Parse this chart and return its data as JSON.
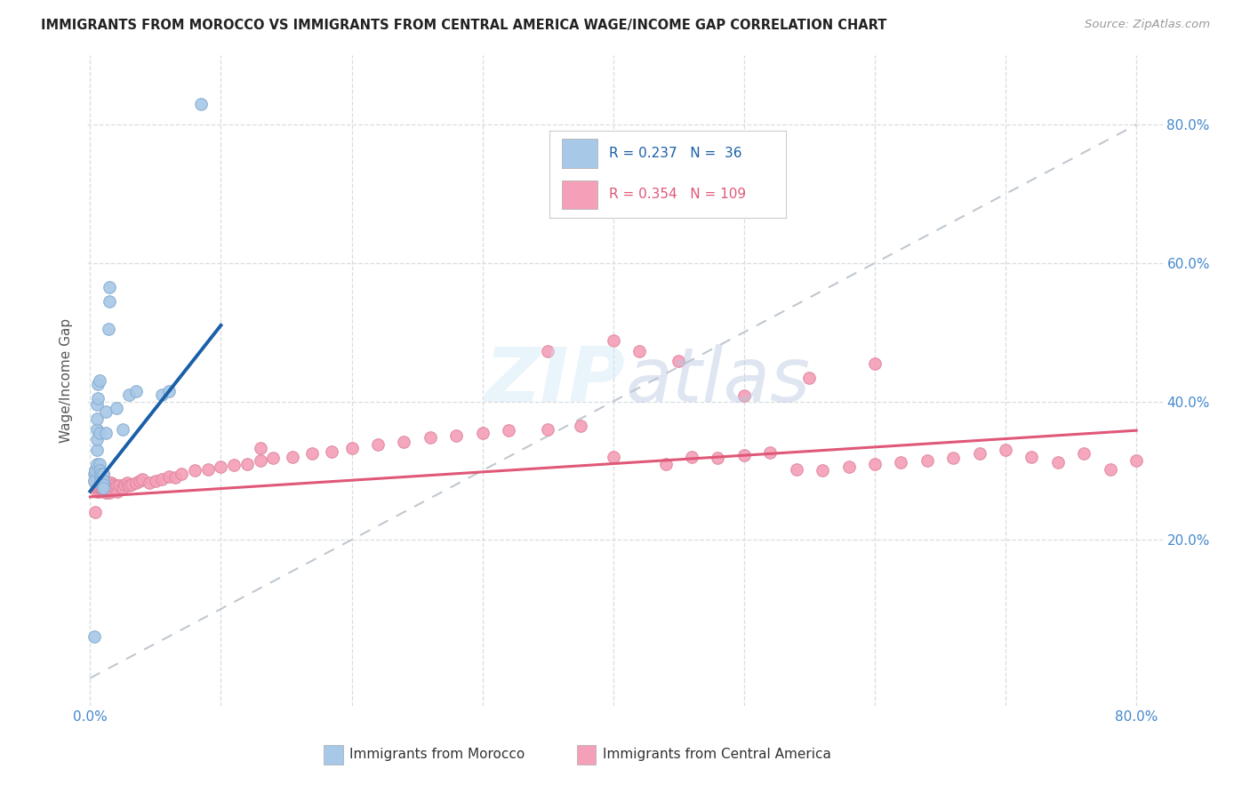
{
  "title": "IMMIGRANTS FROM MOROCCO VS IMMIGRANTS FROM CENTRAL AMERICA WAGE/INCOME GAP CORRELATION CHART",
  "source": "Source: ZipAtlas.com",
  "ylabel": "Wage/Income Gap",
  "ytick_labels": [
    "20.0%",
    "40.0%",
    "60.0%",
    "80.0%"
  ],
  "ytick_vals": [
    0.2,
    0.4,
    0.6,
    0.8
  ],
  "xlim": [
    -0.002,
    0.82
  ],
  "ylim": [
    -0.04,
    0.9
  ],
  "morocco_color": "#a8c8e8",
  "morocco_edge": "#88aed0",
  "central_america_color": "#f4a0b8",
  "central_america_edge": "#e088a0",
  "morocco_line_color": "#1a5fa8",
  "central_america_line_color": "#e05878",
  "diagonal_color": "#c0c8d0",
  "background_color": "#ffffff",
  "grid_color": "#d8dde2",
  "legend_r1": "0.237",
  "legend_n1": "36",
  "legend_r2": "0.354",
  "legend_n2": "109",
  "morocco_x": [
    0.003,
    0.003,
    0.004,
    0.005,
    0.005,
    0.005,
    0.005,
    0.005,
    0.005,
    0.006,
    0.006,
    0.007,
    0.007,
    0.007,
    0.007,
    0.008,
    0.008,
    0.008,
    0.009,
    0.01,
    0.01,
    0.01,
    0.01,
    0.012,
    0.012,
    0.014,
    0.015,
    0.015,
    0.02,
    0.025,
    0.03,
    0.035,
    0.055,
    0.06,
    0.085,
    0.003
  ],
  "morocco_y": [
    0.295,
    0.285,
    0.3,
    0.31,
    0.33,
    0.345,
    0.36,
    0.375,
    0.395,
    0.405,
    0.425,
    0.43,
    0.355,
    0.31,
    0.3,
    0.295,
    0.29,
    0.285,
    0.285,
    0.295,
    0.285,
    0.28,
    0.275,
    0.355,
    0.385,
    0.505,
    0.545,
    0.565,
    0.39,
    0.36,
    0.41,
    0.415,
    0.41,
    0.415,
    0.83,
    0.06
  ],
  "central_america_x": [
    0.003,
    0.004,
    0.004,
    0.004,
    0.005,
    0.005,
    0.005,
    0.005,
    0.005,
    0.006,
    0.006,
    0.006,
    0.006,
    0.006,
    0.007,
    0.007,
    0.007,
    0.007,
    0.008,
    0.008,
    0.008,
    0.008,
    0.009,
    0.009,
    0.009,
    0.01,
    0.01,
    0.01,
    0.01,
    0.011,
    0.011,
    0.012,
    0.012,
    0.012,
    0.013,
    0.013,
    0.014,
    0.014,
    0.015,
    0.015,
    0.016,
    0.016,
    0.017,
    0.018,
    0.019,
    0.02,
    0.021,
    0.022,
    0.025,
    0.026,
    0.028,
    0.03,
    0.032,
    0.035,
    0.038,
    0.04,
    0.045,
    0.05,
    0.055,
    0.06,
    0.065,
    0.07,
    0.08,
    0.09,
    0.1,
    0.11,
    0.12,
    0.13,
    0.14,
    0.155,
    0.17,
    0.185,
    0.2,
    0.22,
    0.24,
    0.26,
    0.28,
    0.3,
    0.32,
    0.35,
    0.375,
    0.4,
    0.42,
    0.44,
    0.46,
    0.48,
    0.5,
    0.52,
    0.54,
    0.56,
    0.58,
    0.6,
    0.62,
    0.64,
    0.66,
    0.68,
    0.7,
    0.72,
    0.74,
    0.76,
    0.78,
    0.8,
    0.35,
    0.4,
    0.45,
    0.5,
    0.55,
    0.6,
    0.13
  ],
  "central_america_y": [
    0.285,
    0.295,
    0.3,
    0.24,
    0.27,
    0.28,
    0.285,
    0.29,
    0.3,
    0.275,
    0.28,
    0.285,
    0.29,
    0.295,
    0.27,
    0.275,
    0.28,
    0.29,
    0.275,
    0.28,
    0.288,
    0.295,
    0.272,
    0.278,
    0.285,
    0.272,
    0.278,
    0.284,
    0.295,
    0.272,
    0.28,
    0.268,
    0.275,
    0.285,
    0.268,
    0.278,
    0.27,
    0.282,
    0.268,
    0.28,
    0.27,
    0.282,
    0.272,
    0.28,
    0.275,
    0.278,
    0.27,
    0.278,
    0.275,
    0.28,
    0.282,
    0.278,
    0.28,
    0.282,
    0.285,
    0.288,
    0.282,
    0.285,
    0.288,
    0.292,
    0.29,
    0.295,
    0.3,
    0.302,
    0.305,
    0.308,
    0.31,
    0.314,
    0.318,
    0.32,
    0.325,
    0.328,
    0.332,
    0.338,
    0.342,
    0.348,
    0.35,
    0.354,
    0.358,
    0.36,
    0.365,
    0.32,
    0.472,
    0.31,
    0.32,
    0.318,
    0.322,
    0.326,
    0.302,
    0.3,
    0.305,
    0.31,
    0.312,
    0.315,
    0.318,
    0.325,
    0.33,
    0.32,
    0.312,
    0.325,
    0.302,
    0.315,
    0.472,
    0.488,
    0.458,
    0.408,
    0.434,
    0.454,
    0.332
  ],
  "morocco_line_x": [
    0.0,
    0.1
  ],
  "morocco_line_y_start": 0.27,
  "morocco_line_y_end": 0.51,
  "ca_line_x": [
    0.0,
    0.8
  ],
  "ca_line_y_start": 0.262,
  "ca_line_y_end": 0.358
}
